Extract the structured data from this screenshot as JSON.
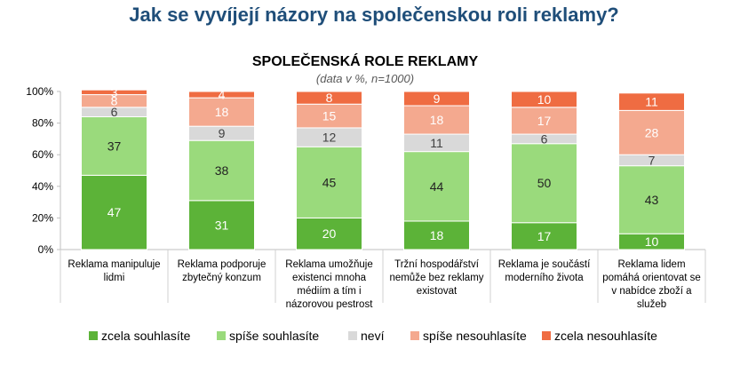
{
  "page_title": "Jak se vyvíjejí názory na společenskou roli reklamy?",
  "colors": {
    "title": "#1f4e79",
    "zcela_souhlasite": "#5cb338",
    "spise_souhlasite": "#9ada7c",
    "nevi": "#d9d9d9",
    "spise_nesouhlasite": "#f4a98f",
    "zcela_nesouhlasite": "#ef6c42"
  },
  "chart_data": {
    "type": "bar",
    "stacked": true,
    "title": "SPOLEČENSKÁ ROLE REKLAMY",
    "subtitle": "(data v %, n=1000)",
    "xlabel": "",
    "ylabel": "",
    "ylim": [
      0,
      100
    ],
    "yticks": [
      "0%",
      "20%",
      "40%",
      "60%",
      "80%",
      "100%"
    ],
    "grid": false,
    "legend_position": "bottom",
    "categories": [
      "Reklama manipuluje lidmi",
      "Reklama podporuje zbytečný konzum",
      "Reklama umožňuje existenci mnoha médiím a tím i názorovou pestrost",
      "Tržní hospodářství nemůže bez reklamy existovat",
      "Reklama je součástí moderního života",
      "Reklama lidem pomáhá orientovat se v nabídce zboží a služeb"
    ],
    "category_lines": [
      [
        "Reklama manipuluje",
        "lidmi"
      ],
      [
        "Reklama podporuje",
        "zbytečný konzum"
      ],
      [
        "Reklama umožňuje",
        "existenci mnoha",
        "médiím a tím i",
        "názorovou pestrost"
      ],
      [
        "Tržní hospodářství",
        "nemůže bez reklamy",
        "existovat"
      ],
      [
        "Reklama je součástí",
        "moderního života"
      ],
      [
        "Reklama lidem",
        "pomáhá orientovat se",
        "v nabídce zboží a",
        "služeb"
      ]
    ],
    "series": [
      {
        "name": "zcela souhlasíte",
        "color_key": "zcela_souhlasite",
        "label_color": "#ffffff",
        "values": [
          47,
          31,
          20,
          18,
          17,
          10
        ]
      },
      {
        "name": "spíše souhlasíte",
        "color_key": "spise_souhlasite",
        "label_color": "#222222",
        "values": [
          37,
          38,
          45,
          44,
          50,
          43
        ]
      },
      {
        "name": "neví",
        "color_key": "nevi",
        "label_color": "#404040",
        "values": [
          6,
          9,
          12,
          11,
          6,
          7
        ]
      },
      {
        "name": "spíše nesouhlasíte",
        "color_key": "spise_nesouhlasite",
        "label_color": "#ffffff",
        "values": [
          8,
          18,
          15,
          18,
          17,
          28
        ]
      },
      {
        "name": "zcela nesouhlasíte",
        "color_key": "zcela_nesouhlasite",
        "label_color": "#ffffff",
        "values": [
          3,
          4,
          8,
          9,
          10,
          11
        ]
      }
    ]
  }
}
